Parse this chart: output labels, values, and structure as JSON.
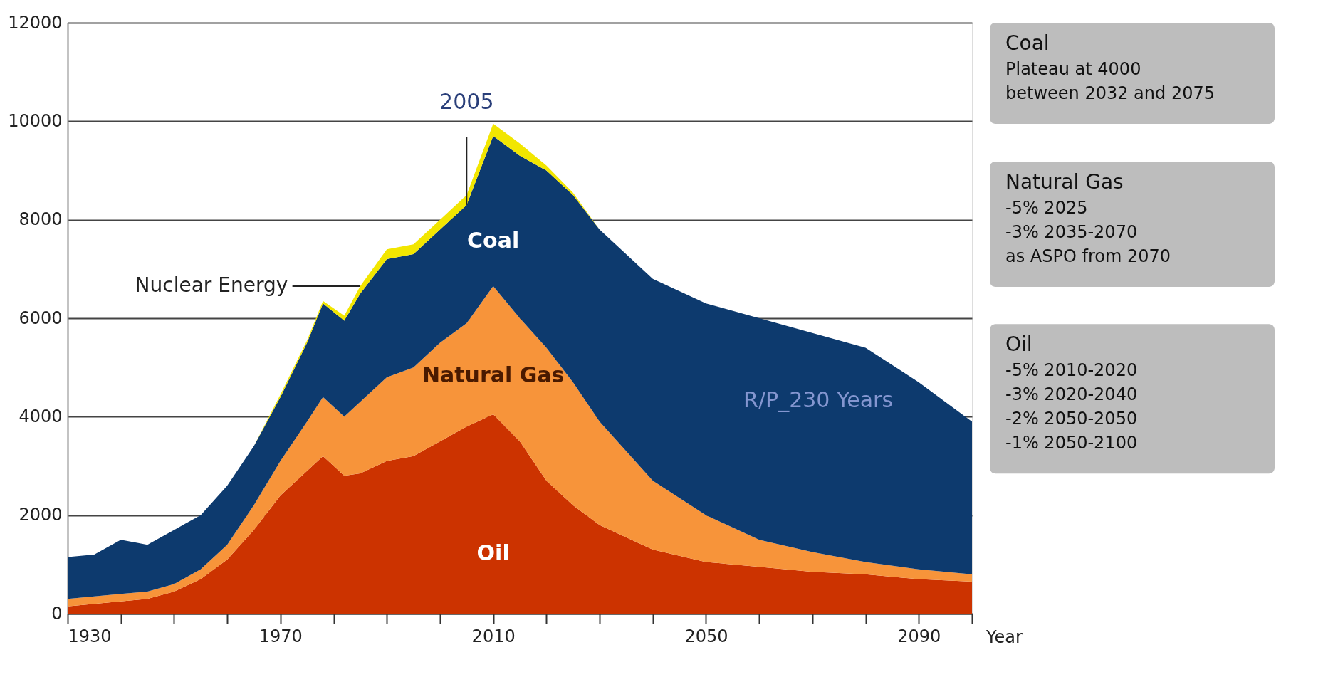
{
  "chart_data": {
    "type": "area",
    "xlabel": "Year",
    "stacked": true,
    "grid": "y",
    "x": [
      1930,
      1935,
      1940,
      1945,
      1950,
      1955,
      1960,
      1965,
      1970,
      1975,
      1978,
      1982,
      1985,
      1990,
      1995,
      2000,
      2005,
      2010,
      2015,
      2020,
      2025,
      2030,
      2040,
      2050,
      2060,
      2070,
      2080,
      2090,
      2100
    ],
    "series": [
      {
        "name": "Oil",
        "color": "#cc3300",
        "values": [
          150,
          200,
          250,
          300,
          450,
          700,
          1100,
          1700,
          2400,
          2900,
          3200,
          2800,
          2850,
          3100,
          3200,
          3500,
          3800,
          4050,
          3500,
          2700,
          2200,
          1800,
          1300,
          1050,
          950,
          850,
          800,
          700,
          650
        ]
      },
      {
        "name": "Natural Gas",
        "color": "#f7943a",
        "values": [
          150,
          150,
          150,
          150,
          150,
          200,
          300,
          500,
          700,
          1000,
          1200,
          1200,
          1450,
          1700,
          1800,
          2000,
          2100,
          2600,
          2500,
          2700,
          2500,
          2100,
          1400,
          950,
          550,
          400,
          250,
          200,
          150
        ]
      },
      {
        "name": "Coal",
        "color": "#0d3a6e",
        "values": [
          850,
          850,
          1100,
          950,
          1100,
          1100,
          1200,
          1200,
          1300,
          1600,
          1900,
          1950,
          2200,
          2400,
          2300,
          2300,
          2400,
          3050,
          3300,
          3600,
          3800,
          3900,
          4100,
          4300,
          4500,
          4450,
          4350,
          3800,
          3100
        ]
      },
      {
        "name": "Nuclear Energy",
        "color": "#f2e600",
        "values": [
          0,
          0,
          0,
          0,
          0,
          0,
          0,
          0,
          50,
          50,
          50,
          100,
          150,
          200,
          200,
          200,
          200,
          250,
          250,
          100,
          50,
          0,
          0,
          0,
          0,
          0,
          0,
          0,
          0
        ]
      }
    ],
    "xlim": [
      1930,
      2100
    ],
    "xticks": [
      1930,
      {
        "value": 1940,
        "label": null
      },
      {
        "value": 1950,
        "label": null
      },
      {
        "value": 1960,
        "label": null
      },
      1970,
      {
        "value": 1980,
        "label": null
      },
      {
        "value": 1990,
        "label": null
      },
      {
        "value": 2000,
        "label": null
      },
      2010,
      {
        "value": 2020,
        "label": null
      },
      {
        "value": 2030,
        "label": null
      },
      {
        "value": 2040,
        "label": null
      },
      2050,
      {
        "value": 2060,
        "label": null
      },
      {
        "value": 2070,
        "label": null
      },
      {
        "value": 2080,
        "label": null
      },
      2090,
      {
        "value": 2100,
        "label": null
      }
    ],
    "ylim": [
      0,
      12000
    ],
    "yticks": [
      0,
      2000,
      4000,
      6000,
      8000,
      10000,
      12000
    ],
    "annotations": [
      {
        "text": "2005",
        "x": 2005,
        "y": 8300
      },
      "R/P_230 Years",
      "Coal\nPlateau at 4000\nbetween 2032 and 2075",
      "Natural Gas\n-5% 2025\n-3% 2035-2070\nas ASPO from 2070",
      "Oil\n-5% 2010-2020\n-3% 2020-2040\n-2% 2050-2050\n-1% 2050-2100"
    ]
  }
}
